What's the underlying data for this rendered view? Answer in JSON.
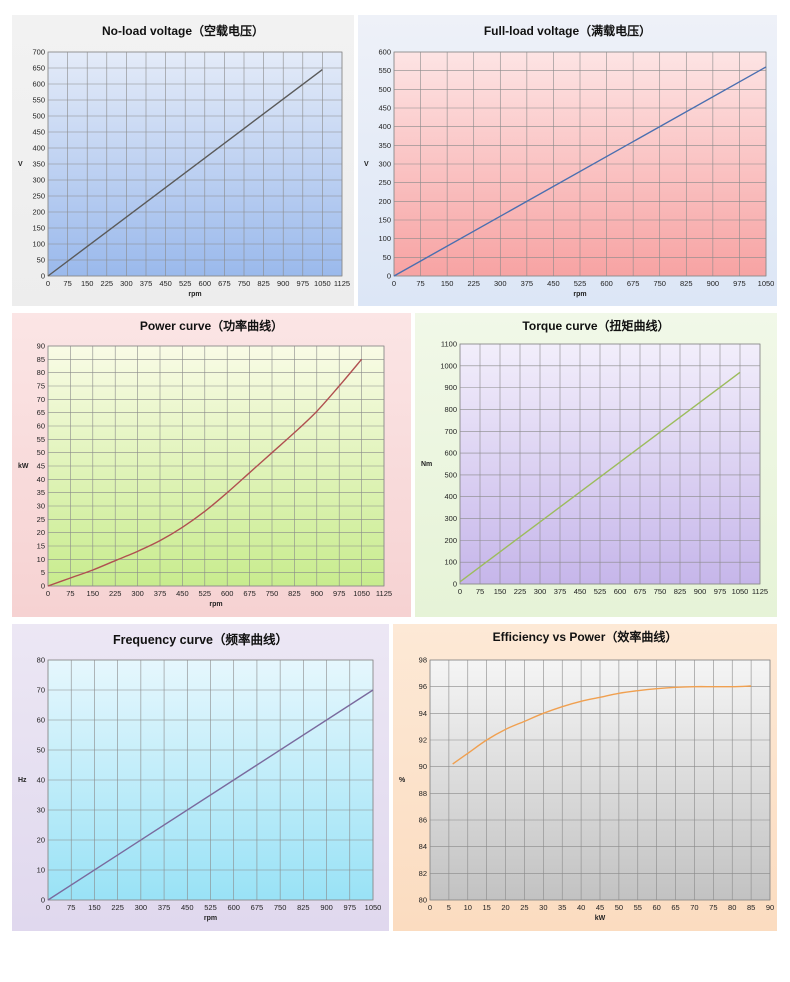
{
  "chart_data": [
    {
      "type": "line",
      "title": "No-load voltage（空载电压）",
      "xlabel": "rpm",
      "ylabel": "V",
      "xlim": [
        0,
        1125
      ],
      "ylim": [
        0,
        700
      ],
      "xticks": [
        0,
        75,
        150,
        225,
        300,
        375,
        450,
        525,
        600,
        675,
        750,
        825,
        900,
        975,
        1050,
        1125
      ],
      "yticks": [
        0,
        50,
        100,
        150,
        200,
        250,
        300,
        350,
        400,
        450,
        500,
        550,
        600,
        650,
        700
      ],
      "grid": true,
      "x": [
        0,
        1050
      ],
      "y": [
        0,
        645
      ],
      "colors": {
        "line": "#5a5a5a",
        "plot_top": "#e4ebf8",
        "plot_bottom": "#9ab9ec"
      }
    },
    {
      "type": "line",
      "title": "Full-load voltage（满载电压）",
      "xlabel": "rpm",
      "ylabel": "V",
      "xlim": [
        0,
        1050
      ],
      "ylim": [
        0,
        600
      ],
      "xticks": [
        0,
        75,
        150,
        225,
        300,
        375,
        450,
        525,
        600,
        675,
        750,
        825,
        900,
        975,
        1050
      ],
      "yticks": [
        0,
        50,
        100,
        150,
        200,
        250,
        300,
        350,
        400,
        450,
        500,
        550,
        600
      ],
      "grid": true,
      "x": [
        0,
        1050
      ],
      "y": [
        0,
        560
      ],
      "colors": {
        "line": "#4a6fb0",
        "plot_top": "#fde4e4",
        "plot_bottom": "#f7a3a3"
      }
    },
    {
      "type": "line",
      "title": "Power curve（功率曲线）",
      "xlabel": "rpm",
      "ylabel": "kW",
      "xlim": [
        0,
        1125
      ],
      "ylim": [
        0,
        90
      ],
      "xticks": [
        0,
        75,
        150,
        225,
        300,
        375,
        450,
        525,
        600,
        675,
        750,
        825,
        900,
        975,
        1050,
        1125
      ],
      "yticks": [
        0,
        5,
        10,
        15,
        20,
        25,
        30,
        35,
        40,
        45,
        50,
        55,
        60,
        65,
        70,
        75,
        80,
        85,
        90
      ],
      "grid": true,
      "x": [
        0,
        75,
        150,
        225,
        300,
        375,
        450,
        525,
        600,
        675,
        750,
        825,
        900,
        975,
        1050
      ],
      "y": [
        0,
        3,
        6,
        9.5,
        13,
        17,
        22,
        28,
        35,
        42.5,
        50,
        57.5,
        65.5,
        75,
        85
      ],
      "colors": {
        "line": "#b05050",
        "plot_top": "#f9fbe6",
        "plot_bottom": "#c8ec8e"
      }
    },
    {
      "type": "line",
      "title": "Torque curve（扭矩曲线）",
      "xlabel": "",
      "ylabel": "Nm",
      "xlim": [
        0,
        1125
      ],
      "ylim": [
        0,
        1100
      ],
      "xticks": [
        0,
        75,
        150,
        225,
        300,
        375,
        450,
        525,
        600,
        675,
        750,
        825,
        900,
        975,
        1050,
        1125
      ],
      "yticks": [
        0,
        100,
        200,
        300,
        400,
        500,
        600,
        700,
        800,
        900,
        1000,
        1100
      ],
      "grid": true,
      "x": [
        0,
        1050
      ],
      "y": [
        10,
        970
      ],
      "colors": {
        "line": "#9cbc5c",
        "plot_top": "#f2eefb",
        "plot_bottom": "#c6b6ea"
      }
    },
    {
      "type": "line",
      "title": "Frequency curve（频率曲线）",
      "xlabel": "rpm",
      "ylabel": "Hz",
      "xlim": [
        0,
        1050
      ],
      "ylim": [
        0,
        80
      ],
      "xticks": [
        0,
        75,
        150,
        225,
        300,
        375,
        450,
        525,
        600,
        675,
        750,
        825,
        900,
        975,
        1050
      ],
      "yticks": [
        0,
        10,
        20,
        30,
        40,
        50,
        60,
        70,
        80
      ],
      "grid": true,
      "x": [
        0,
        1050
      ],
      "y": [
        0,
        70
      ],
      "colors": {
        "line": "#7a6a9e",
        "plot_top": "#e6f7fd",
        "plot_bottom": "#99e2f6"
      }
    },
    {
      "type": "line",
      "title": "Efficiency vs Power（效率曲线）",
      "xlabel": "kW",
      "ylabel": "%",
      "xlim": [
        0,
        90
      ],
      "ylim": [
        80,
        98
      ],
      "xticks": [
        0,
        5,
        10,
        15,
        20,
        25,
        30,
        35,
        40,
        45,
        50,
        55,
        60,
        65,
        70,
        75,
        80,
        85,
        90
      ],
      "yticks": [
        80,
        82,
        84,
        86,
        88,
        90,
        92,
        94,
        96,
        98
      ],
      "grid": true,
      "x": [
        6,
        10,
        15,
        20,
        25,
        30,
        35,
        40,
        45,
        50,
        55,
        60,
        65,
        70,
        75,
        80,
        85
      ],
      "y": [
        90.2,
        91,
        92,
        92.8,
        93.4,
        94,
        94.5,
        94.9,
        95.2,
        95.5,
        95.7,
        95.85,
        95.95,
        96,
        96,
        96,
        96.05
      ],
      "colors": {
        "line": "#f0a050",
        "plot_top": "#f5f5f5",
        "plot_bottom": "#c2c2c2"
      }
    }
  ]
}
